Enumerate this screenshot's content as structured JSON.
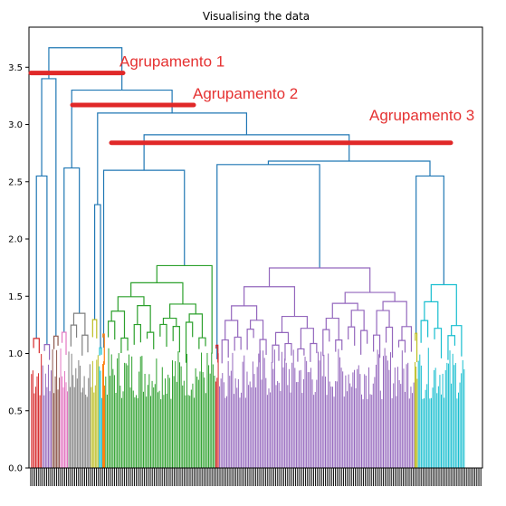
{
  "chart_data": {
    "type": "dendrogram",
    "title": "Visualising the data",
    "xlabel": "",
    "ylabel": "",
    "ylim": [
      0,
      3.85
    ],
    "yticks": [
      "0.0",
      "0.5",
      "1.0",
      "1.5",
      "2.0",
      "2.5",
      "3.0",
      "3.5"
    ],
    "grid": false,
    "clusters": [
      {
        "color": "#d62728",
        "leaf_share": 0.025,
        "top_height": 1.95
      },
      {
        "color": "#9467bd",
        "leaf_share": 0.022,
        "top_height": 1.6
      },
      {
        "color": "#8c564b",
        "leaf_share": 0.018,
        "top_height": 1.3
      },
      {
        "color": "#e377c2",
        "leaf_share": 0.018,
        "top_height": 2.2
      },
      {
        "color": "#7f7f7f",
        "leaf_share": 0.05,
        "top_height": 2.4
      },
      {
        "color": "#bcbd22",
        "leaf_share": 0.018,
        "top_height": 2.48
      },
      {
        "color": "#17becf",
        "leaf_share": 0.008,
        "top_height": 1.05
      },
      {
        "color": "#ff7f0e",
        "leaf_share": 0.006,
        "top_height": 1.05
      },
      {
        "color": "#2ca02c",
        "leaf_share": 0.245,
        "top_height": 2.48
      },
      {
        "color": "#d62728",
        "leaf_share": 0.008,
        "top_height": 0.95
      },
      {
        "color": "#9467bd",
        "leaf_share": 0.435,
        "top_height": 2.52
      },
      {
        "color": "#bcbd22",
        "leaf_share": 0.007,
        "top_height": 2.25
      },
      {
        "color": "#17becf",
        "leaf_share": 0.105,
        "top_height": 2.42
      }
    ],
    "merges": [
      {
        "height": 3.67,
        "label": ""
      },
      {
        "height": 3.4,
        "label": ""
      },
      {
        "height": 3.3,
        "label": ""
      },
      {
        "height": 3.1,
        "label": ""
      },
      {
        "height": 2.91,
        "label": ""
      },
      {
        "height": 2.68,
        "label": ""
      }
    ],
    "annotations": [
      {
        "text": "Agrupamento 1",
        "height": 3.45
      },
      {
        "text": "Agrupamento 2",
        "height": 3.17
      },
      {
        "text": "Agrupamento 3",
        "height": 2.84
      }
    ],
    "link_color_above_threshold": "#1f77b4",
    "annotation_color": "#e02828"
  }
}
